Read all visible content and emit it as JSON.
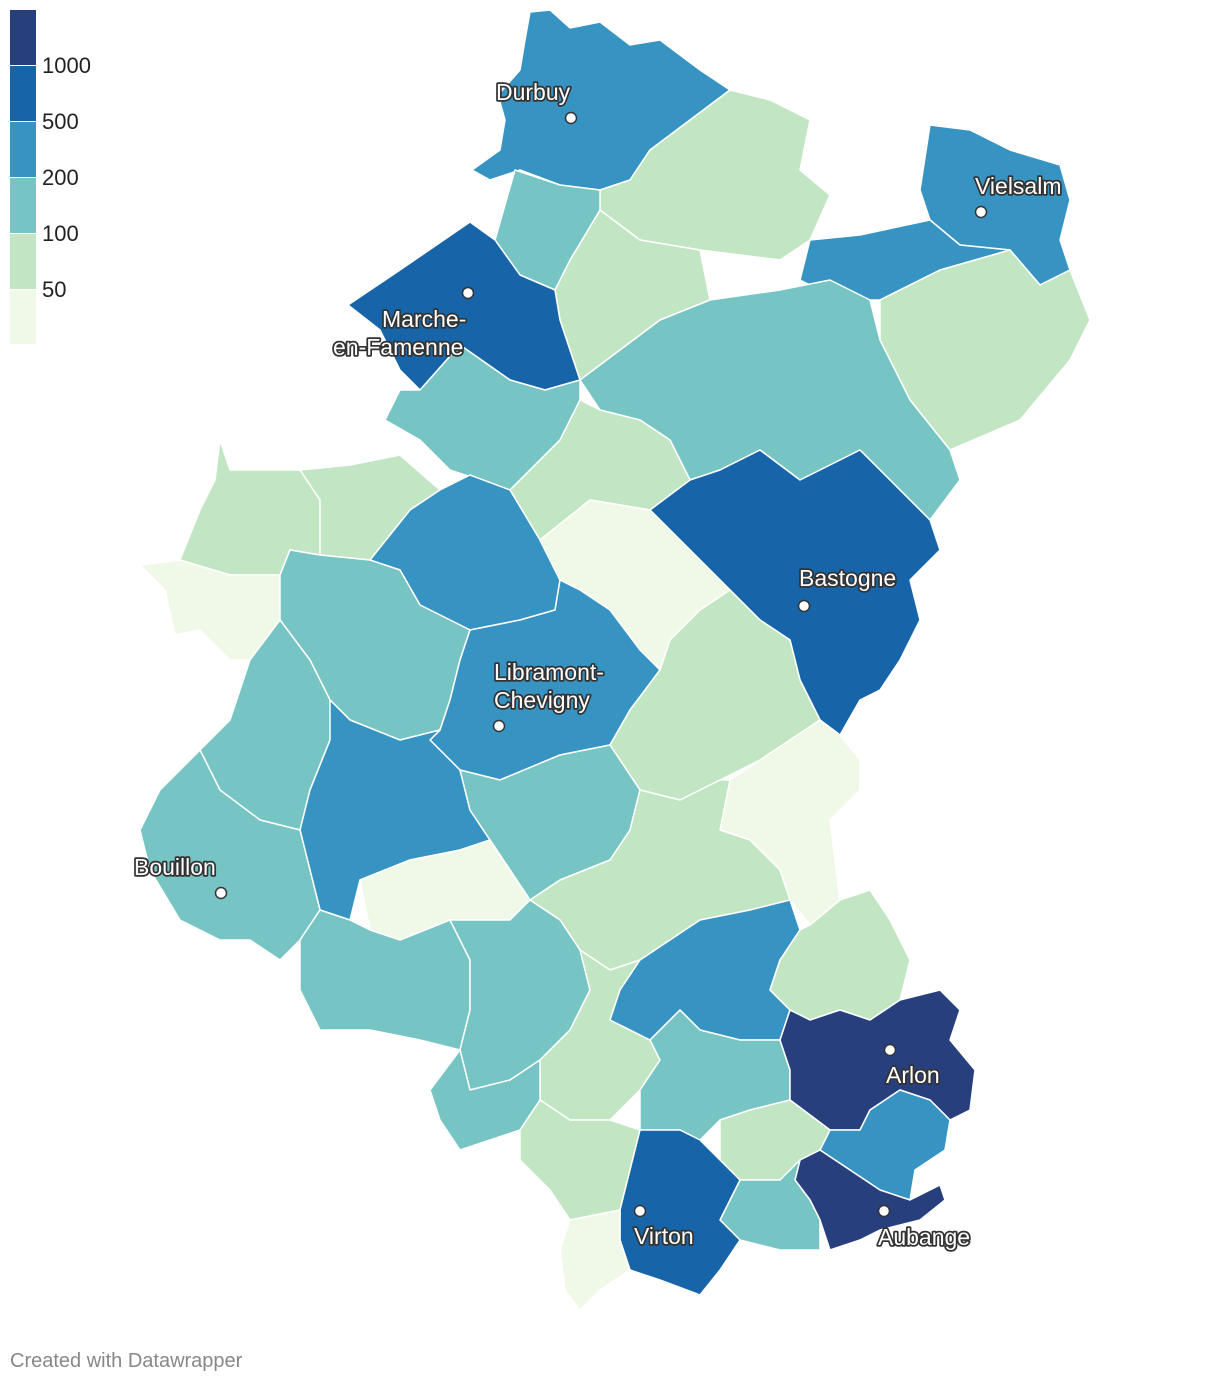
{
  "colors": {
    "bins": [
      "#f0f9e8",
      "#c2e6c3",
      "#76c4c4",
      "#3793c2",
      "#1764a8",
      "#283f7e"
    ],
    "border": "#ffffff"
  },
  "legend": {
    "ticks": [
      "1000",
      "500",
      "200",
      "100",
      "50"
    ]
  },
  "cities": [
    {
      "name": "Durbuy"
    },
    {
      "name": "Vielsalm"
    },
    {
      "name": "Marche-",
      "name2": "en-Famenne"
    },
    {
      "name": "Bastogne"
    },
    {
      "name": "Libramont-",
      "name2": "Chevigny"
    },
    {
      "name": "Bouillon"
    },
    {
      "name": "Arlon"
    },
    {
      "name": "Virton"
    },
    {
      "name": "Aubange"
    }
  ],
  "credit": "Created with Datawrapper"
}
